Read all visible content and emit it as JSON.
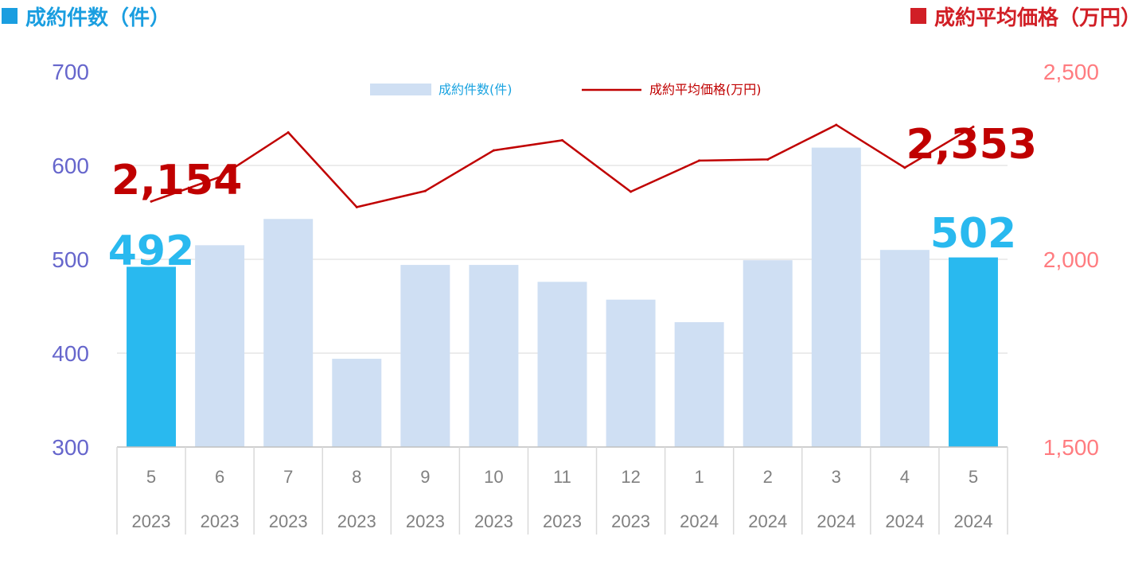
{
  "header": {
    "left_title": "成約件数（件）",
    "right_title": "成約平均価格（万円）"
  },
  "colors": {
    "left_title": "#1a9ee0",
    "right_title": "#d11f26",
    "bar_highlight": "#29b9ef",
    "bar_normal": "#cfdff3",
    "line": "#c00000",
    "left_axis": "#6666cc",
    "right_axis": "#ff7c80",
    "grid": "#d9d9d9",
    "legend_bar_text": "#1aa3e0",
    "legend_line_text": "#c00000"
  },
  "chart_data": {
    "type": "bar+line",
    "categories": [
      "5",
      "6",
      "7",
      "8",
      "9",
      "10",
      "11",
      "12",
      "1",
      "2",
      "3",
      "4",
      "5"
    ],
    "years": [
      "2023",
      "2023",
      "2023",
      "2023",
      "2023",
      "2023",
      "2023",
      "2023",
      "2024",
      "2024",
      "2024",
      "2024",
      "2024"
    ],
    "series": [
      {
        "name": "成約件数(件)",
        "type": "bar",
        "axis": "left",
        "values": [
          492,
          515,
          543,
          394,
          494,
          494,
          476,
          457,
          433,
          499,
          619,
          510,
          502
        ],
        "highlight_indices": [
          0,
          12
        ]
      },
      {
        "name": "成約平均価格(万円)",
        "type": "line",
        "axis": "right",
        "values": [
          2154,
          2219,
          2338,
          2139,
          2182,
          2290,
          2317,
          2180,
          2263,
          2266,
          2358,
          2244,
          2353
        ]
      }
    ],
    "left_axis": {
      "ylim": [
        300,
        700
      ],
      "ticks": [
        "300",
        "400",
        "500",
        "600",
        "700"
      ]
    },
    "right_axis": {
      "ylim": [
        1500,
        2500
      ],
      "ticks": [
        "1,500",
        "2,000",
        "2,500"
      ]
    },
    "callouts": {
      "bar_first": "492",
      "bar_last": "502",
      "line_first": "2,154",
      "line_last": "2,353"
    },
    "legend": {
      "position": "top-center"
    },
    "grid": true
  }
}
